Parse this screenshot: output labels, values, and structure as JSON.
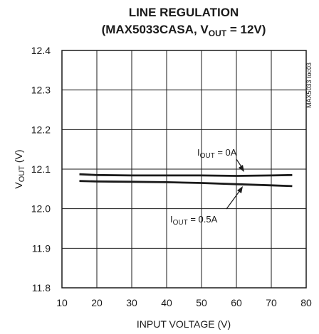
{
  "chart_data": {
    "type": "line",
    "title_line1": "LINE REGULATION",
    "title_line2_prefix": "(MAX5033CASA, V",
    "title_line2_sub": "OUT",
    "title_line2_suffix": " = 12V)",
    "xlabel": "INPUT VOLTAGE (V)",
    "ylabel_main": "V",
    "ylabel_sub": "OUT",
    "ylabel_suffix": " (V)",
    "side_id": "MAX5033 toc03",
    "xlim": [
      10,
      80
    ],
    "ylim": [
      11.8,
      12.4
    ],
    "xticks": [
      "10",
      "20",
      "30",
      "40",
      "50",
      "60",
      "70",
      "80"
    ],
    "yticks": [
      "11.8",
      "11.9",
      "12.0",
      "12.1",
      "12.2",
      "12.3",
      "12.4"
    ],
    "grid": true,
    "series": [
      {
        "annotation_prefix": "I",
        "annotation_sub": "OUT",
        "annotation_suffix": " = 0A",
        "x": [
          15,
          20,
          30,
          40,
          50,
          60,
          70,
          76
        ],
        "y": [
          12.087,
          12.085,
          12.084,
          12.084,
          12.084,
          12.083,
          12.084,
          12.085
        ]
      },
      {
        "annotation_prefix": "I",
        "annotation_sub": "OUT",
        "annotation_suffix": " = 0.5A",
        "x": [
          15,
          20,
          30,
          40,
          50,
          60,
          70,
          76
        ],
        "y": [
          12.07,
          12.069,
          12.068,
          12.067,
          12.065,
          12.062,
          12.059,
          12.057
        ]
      }
    ]
  }
}
